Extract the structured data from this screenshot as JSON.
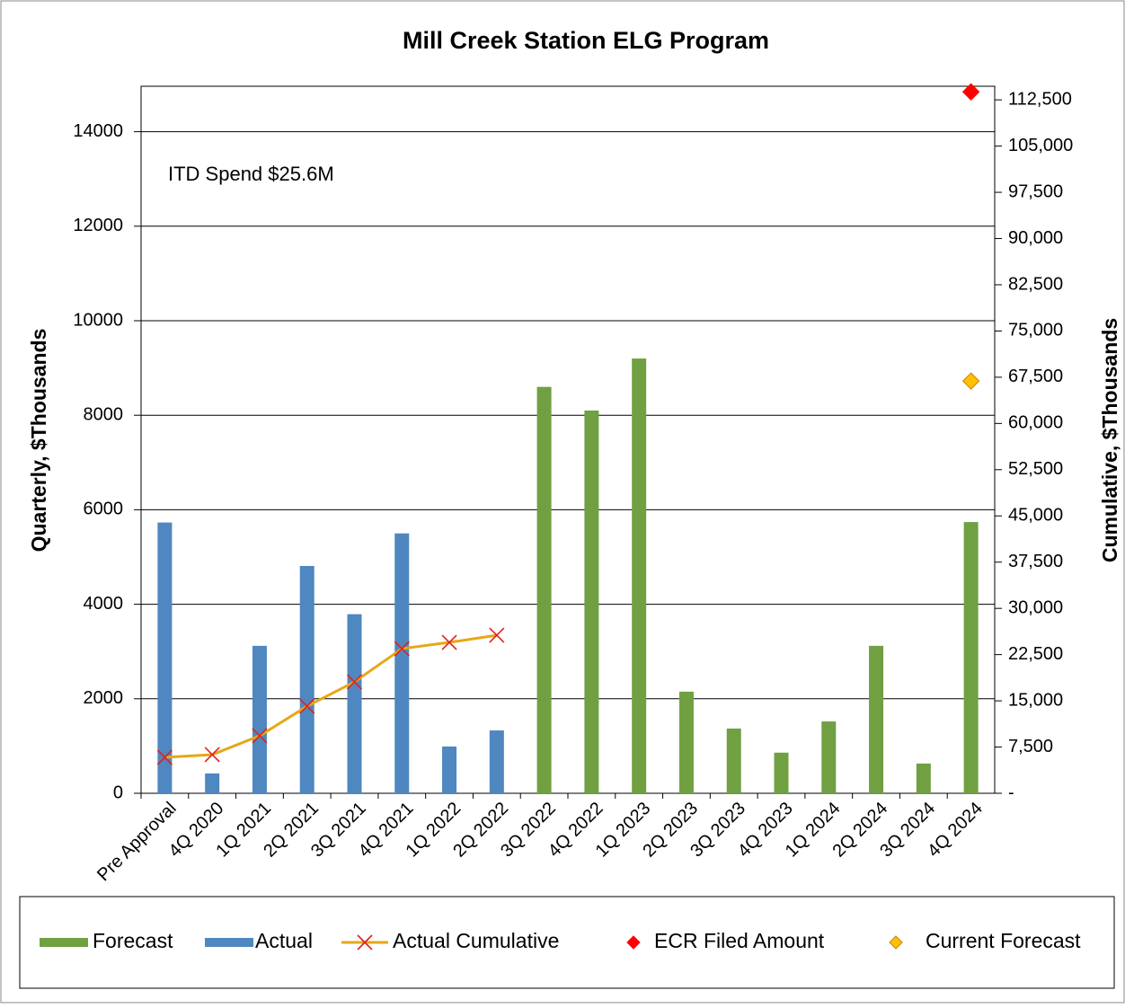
{
  "chart_data": {
    "type": "bar",
    "title": "Mill Creek Station ELG Program",
    "annotation": "ITD Spend  $25.6M",
    "y_label": "Quarterly, $Thousands",
    "y2_label": "Cumulative, $Thousands",
    "categories": [
      "Pre Approval",
      "4Q 2020",
      "1Q 2021",
      "2Q 2021",
      "3Q 2021",
      "4Q 2021",
      "1Q 2022",
      "2Q 2022",
      "3Q 2022",
      "4Q 2022",
      "1Q 2023",
      "2Q 2023",
      "3Q 2023",
      "4Q 2023",
      "1Q 2024",
      "2Q 2024",
      "3Q 2024",
      "4Q 2024"
    ],
    "ylim": [
      0,
      15000
    ],
    "yticks": [
      0,
      2000,
      4000,
      6000,
      8000,
      10000,
      12000,
      14000
    ],
    "y2lim": [
      0,
      115000
    ],
    "y2ticks": [
      {
        "value": 0,
        "label": "-"
      },
      {
        "value": 7500,
        "label": "7,500"
      },
      {
        "value": 15000,
        "label": "15,000"
      },
      {
        "value": 22500,
        "label": "22,500"
      },
      {
        "value": 30000,
        "label": "30,000"
      },
      {
        "value": 37500,
        "label": "37,500"
      },
      {
        "value": 45000,
        "label": "45,000"
      },
      {
        "value": 52500,
        "label": "52,500"
      },
      {
        "value": 60000,
        "label": "60,000"
      },
      {
        "value": 67500,
        "label": "67,500"
      },
      {
        "value": 75000,
        "label": "75,000"
      },
      {
        "value": 82500,
        "label": "82,500"
      },
      {
        "value": 90000,
        "label": "90,000"
      },
      {
        "value": 97500,
        "label": "97,500"
      },
      {
        "value": 105000,
        "label": "105,000"
      },
      {
        "value": 112500,
        "label": "112,500"
      }
    ],
    "grid": true,
    "legend": "bottom",
    "series": [
      {
        "name": "Forecast",
        "type": "bar",
        "color": "#70a042",
        "values": [
          null,
          null,
          null,
          null,
          null,
          null,
          null,
          null,
          8600,
          8100,
          9200,
          2150,
          1370,
          860,
          1520,
          3120,
          630,
          5740
        ]
      },
      {
        "name": "Actual",
        "type": "bar",
        "color": "#4f87c0",
        "values": [
          5730,
          420,
          3120,
          4810,
          3790,
          5500,
          990,
          1330,
          null,
          null,
          null,
          null,
          null,
          null,
          null,
          null,
          null,
          null
        ]
      },
      {
        "name": "Actual Cumulative",
        "type": "line",
        "axis": "y2",
        "color": "#e6a817",
        "marker_color": "#e02020",
        "values": [
          5830,
          6270,
          9330,
          14130,
          18070,
          23460,
          24480,
          25640,
          null,
          null,
          null,
          null,
          null,
          null,
          null,
          null,
          null,
          null
        ]
      },
      {
        "name": "ECR Filed Amount",
        "type": "scatter",
        "axis": "y2",
        "color": "#ff0000",
        "values": [
          null,
          null,
          null,
          null,
          null,
          null,
          null,
          null,
          null,
          null,
          null,
          null,
          null,
          null,
          null,
          null,
          null,
          113800
        ]
      },
      {
        "name": "Current Forecast",
        "type": "scatter",
        "axis": "y2",
        "color": "#ffc000",
        "values": [
          null,
          null,
          null,
          null,
          null,
          null,
          null,
          null,
          null,
          null,
          null,
          null,
          null,
          null,
          null,
          null,
          null,
          66880
        ]
      }
    ]
  }
}
